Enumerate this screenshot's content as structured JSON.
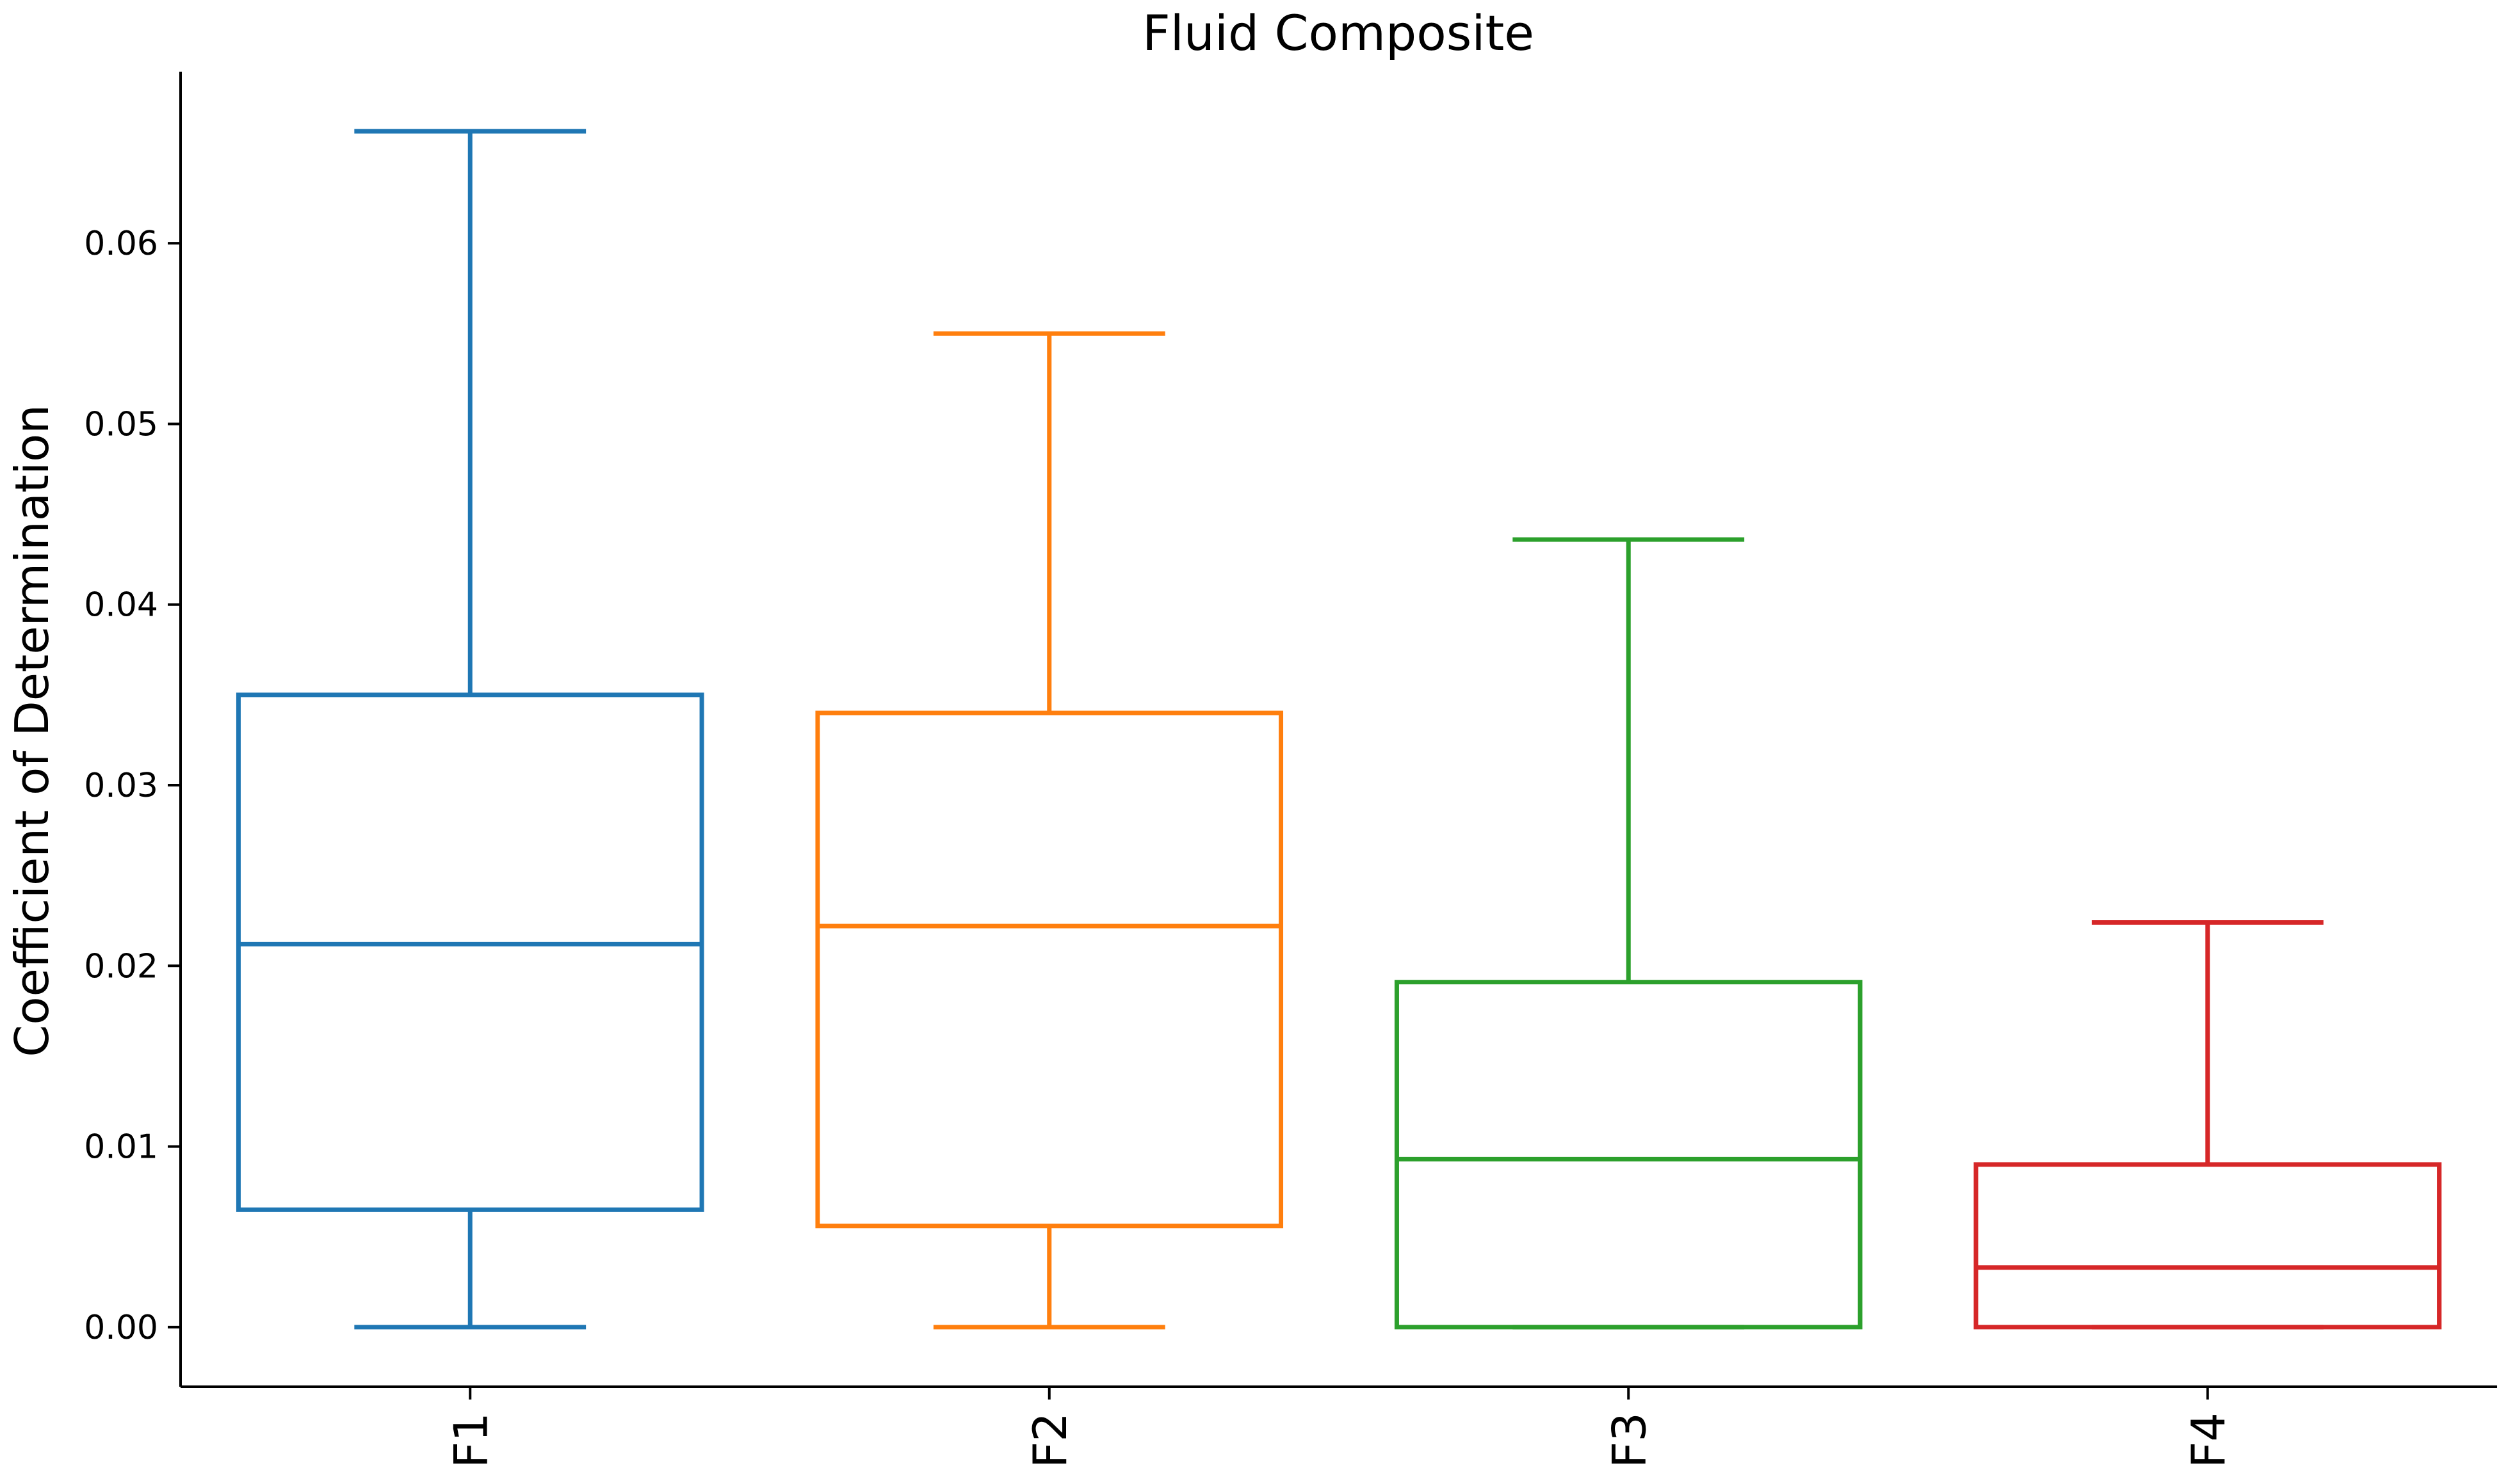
{
  "chart_data": {
    "type": "box",
    "title": "Fluid Composite",
    "xlabel": "",
    "ylabel": "Coefficient of Determination",
    "ylim": [
      -0.0033,
      0.0695
    ],
    "yticks": [
      0.0,
      0.01,
      0.02,
      0.03,
      0.04,
      0.05,
      0.06
    ],
    "ytick_labels": [
      "0.00",
      "0.01",
      "0.02",
      "0.03",
      "0.04",
      "0.05",
      "0.06"
    ],
    "categories": [
      "F1",
      "F2",
      "F3",
      "F4"
    ],
    "grid": false,
    "boxes": [
      {
        "name": "F1",
        "color": "#1f77b4",
        "whisker_low": 0.0,
        "q1": 0.0065,
        "median": 0.0212,
        "q3": 0.035,
        "whisker_high": 0.0662
      },
      {
        "name": "F2",
        "color": "#ff7f0e",
        "whisker_low": 0.0,
        "q1": 0.0056,
        "median": 0.0222,
        "q3": 0.034,
        "whisker_high": 0.055
      },
      {
        "name": "F3",
        "color": "#2ca02c",
        "whisker_low": 0.0,
        "q1": 0.0,
        "median": 0.0093,
        "q3": 0.0191,
        "whisker_high": 0.0436
      },
      {
        "name": "F4",
        "color": "#d62728",
        "whisker_low": 0.0,
        "q1": 0.0,
        "median": 0.0033,
        "q3": 0.009,
        "whisker_high": 0.0224
      }
    ]
  }
}
